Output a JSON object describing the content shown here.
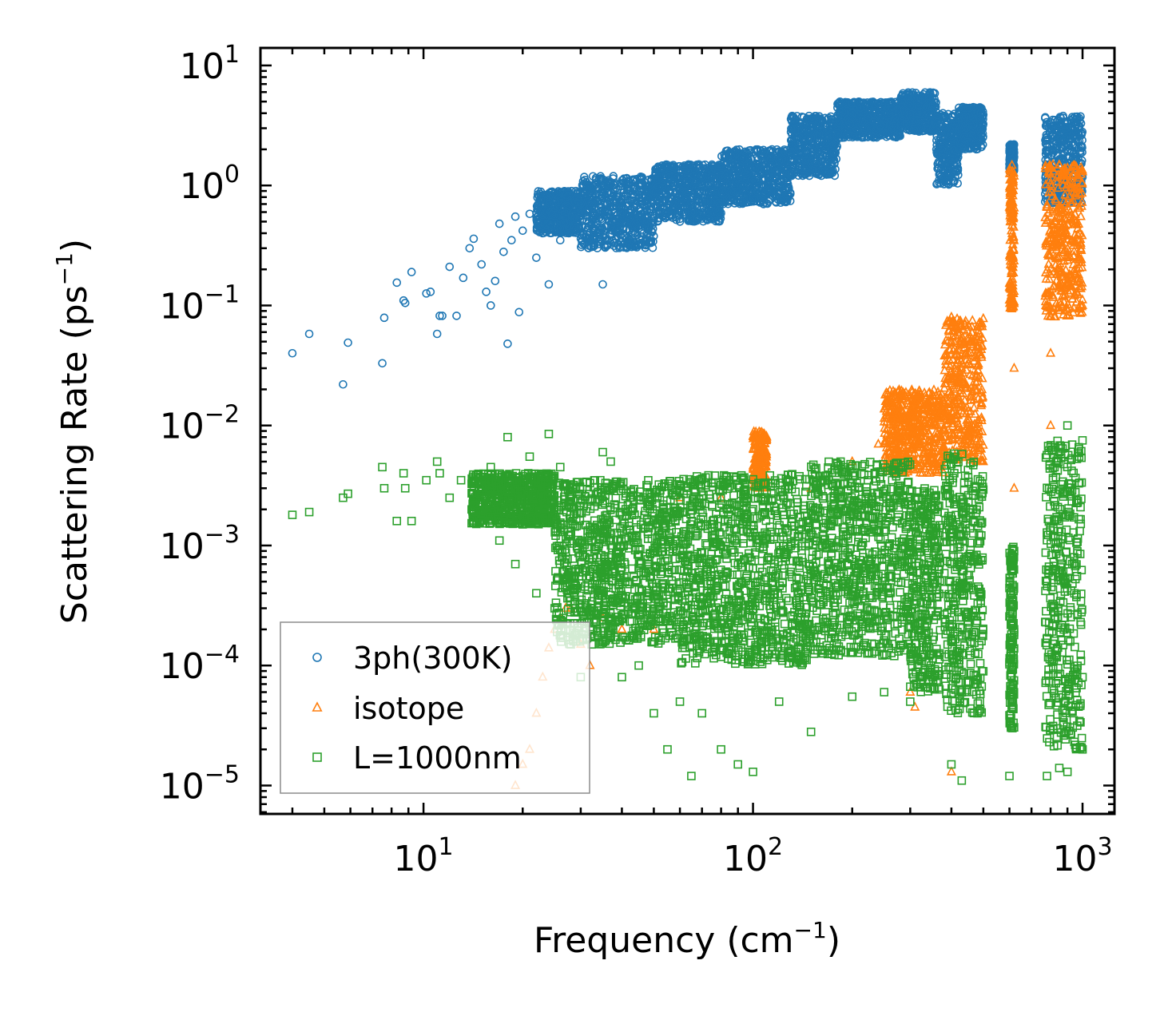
{
  "chart_data": {
    "type": "scatter",
    "title": "",
    "xlabel": "Frequency",
    "xlabel_unit": "(cm",
    "xlabel_unit_exp": "−1",
    "xlabel_unit_close": ")",
    "ylabel": "Scattering Rate",
    "ylabel_unit": "(ps",
    "ylabel_unit_exp": "−1",
    "ylabel_unit_close": ")",
    "xscale": "log",
    "yscale": "log",
    "xlim": [
      3.2,
      1250
    ],
    "ylim": [
      5.8e-06,
      14
    ],
    "x_ticks": [
      {
        "value": 10,
        "base": "10",
        "exp": "1"
      },
      {
        "value": 100,
        "base": "10",
        "exp": "2"
      },
      {
        "value": 1000,
        "base": "10",
        "exp": "3"
      }
    ],
    "y_ticks": [
      {
        "value": 10,
        "base": "10",
        "exp": "1"
      },
      {
        "value": 1,
        "base": "10",
        "exp": "0"
      },
      {
        "value": 0.1,
        "base": "10",
        "exp": "−1"
      },
      {
        "value": 0.01,
        "base": "10",
        "exp": "−2"
      },
      {
        "value": 0.001,
        "base": "10",
        "exp": "−3"
      },
      {
        "value": 0.0001,
        "base": "10",
        "exp": "−4"
      },
      {
        "value": 1e-05,
        "base": "10",
        "exp": "−5"
      }
    ],
    "legend_position": "bottom-left",
    "series": [
      {
        "name": "3ph(300K)",
        "marker": "circle",
        "color": "#1f77b4",
        "points": [
          [
            4.0,
            0.04
          ],
          [
            4.5,
            0.058
          ],
          [
            5.7,
            0.022
          ],
          [
            5.9,
            0.049
          ],
          [
            7.5,
            0.033
          ],
          [
            7.6,
            0.079
          ],
          [
            8.3,
            0.155
          ],
          [
            8.7,
            0.11
          ],
          [
            8.8,
            0.105
          ],
          [
            9.2,
            0.19
          ],
          [
            10.2,
            0.126
          ],
          [
            10.5,
            0.13
          ],
          [
            11.0,
            0.058
          ],
          [
            11.2,
            0.082
          ],
          [
            11.4,
            0.082
          ],
          [
            12.0,
            0.21
          ],
          [
            12.6,
            0.082
          ],
          [
            13.2,
            0.17
          ],
          [
            13.8,
            0.3
          ],
          [
            14.2,
            0.36
          ],
          [
            15.0,
            0.22
          ],
          [
            15.5,
            0.13
          ],
          [
            16.0,
            0.1
          ],
          [
            16.5,
            0.16
          ],
          [
            17.0,
            0.48
          ],
          [
            17.5,
            0.28
          ],
          [
            18.0,
            0.048
          ],
          [
            18.5,
            0.35
          ],
          [
            19.0,
            0.55
          ],
          [
            19.5,
            0.088
          ],
          [
            20.0,
            0.42
          ],
          [
            21.0,
            0.58
          ],
          [
            22.0,
            0.25
          ],
          [
            23.0,
            0.4
          ],
          [
            24.0,
            0.15
          ],
          [
            25.0,
            0.65
          ],
          [
            26.0,
            0.35
          ],
          [
            28.0,
            0.5
          ],
          [
            30.0,
            0.7
          ],
          [
            35.0,
            0.15
          ],
          [
            40.0,
            0.6
          ],
          [
            50.0,
            0.9
          ],
          [
            60.0,
            0.5
          ],
          [
            70.0,
            1.2
          ],
          [
            80.0,
            1.5
          ],
          [
            100.0,
            1.4
          ],
          [
            150.0,
            2.5
          ],
          [
            200.0,
            4.0
          ],
          [
            300.0,
            5.0
          ]
        ],
        "bands": [
          {
            "x": [
              22,
              30
            ],
            "y": [
              0.4,
              0.9
            ]
          },
          {
            "x": [
              30,
              50
            ],
            "y": [
              0.3,
              1.2
            ]
          },
          {
            "x": [
              50,
              80
            ],
            "y": [
              0.5,
              1.5
            ]
          },
          {
            "x": [
              80,
              130
            ],
            "y": [
              0.7,
              2.0
            ]
          },
          {
            "x": [
              130,
              180
            ],
            "y": [
              1.2,
              3.8
            ]
          },
          {
            "x": [
              180,
              280
            ],
            "y": [
              2.5,
              5.0
            ]
          },
          {
            "x": [
              280,
              360
            ],
            "y": [
              2.8,
              6.0
            ]
          },
          {
            "x": [
              360,
              420
            ],
            "y": [
              1.0,
              4.0
            ]
          },
          {
            "x": [
              420,
              500
            ],
            "y": [
              2.0,
              4.5
            ]
          },
          {
            "x": [
              600,
              620
            ],
            "y": [
              1.3,
              2.2
            ]
          },
          {
            "x": [
              770,
              1000
            ],
            "y": [
              0.7,
              3.8
            ]
          }
        ]
      },
      {
        "name": "isotope",
        "marker": "triangle",
        "color": "#ff7f0e",
        "points": [
          [
            19.0,
            1e-05
          ],
          [
            20.0,
            1.5e-05
          ],
          [
            21.0,
            2e-05
          ],
          [
            22.0,
            4e-05
          ],
          [
            23.0,
            8e-05
          ],
          [
            24.0,
            0.00014
          ],
          [
            25.0,
            0.0002
          ],
          [
            26.0,
            0.00025
          ],
          [
            27.0,
            0.0003
          ],
          [
            28.0,
            0.0003
          ],
          [
            30.0,
            0.00015
          ],
          [
            32.0,
            0.0001
          ],
          [
            35.0,
            0.00025
          ],
          [
            40.0,
            0.0002
          ],
          [
            50.0,
            0.0002
          ],
          [
            60.0,
            0.0025
          ],
          [
            80.0,
            0.0025
          ],
          [
            110.0,
            0.008
          ],
          [
            150.0,
            0.003
          ],
          [
            200.0,
            0.005
          ],
          [
            240.0,
            0.007
          ],
          [
            300.0,
            0.005
          ],
          [
            330.0,
            0.006
          ],
          [
            380.0,
            0.015
          ],
          [
            400.0,
            0.08
          ],
          [
            430.0,
            0.03
          ],
          [
            470.0,
            0.05
          ],
          [
            500.0,
            0.005
          ],
          [
            620.0,
            1.2
          ],
          [
            620.0,
            0.03
          ],
          [
            620.0,
            0.003
          ],
          [
            800.0,
            0.01
          ],
          [
            800.0,
            0.04
          ],
          [
            900.0,
            1.4
          ],
          [
            1000.0,
            1.3
          ],
          [
            1000.0,
            0.1
          ],
          [
            300.0,
            6e-05
          ],
          [
            310.0,
            4.5e-05
          ],
          [
            400.0,
            1.3e-05
          ]
        ],
        "bands": [
          {
            "x": [
              100,
              110
            ],
            "y": [
              0.003,
              0.009
            ]
          },
          {
            "x": [
              250,
              380
            ],
            "y": [
              0.004,
              0.02
            ]
          },
          {
            "x": [
              380,
              500
            ],
            "y": [
              0.005,
              0.08
            ]
          },
          {
            "x": [
              600,
              620
            ],
            "y": [
              0.09,
              1.5
            ]
          },
          {
            "x": [
              770,
              1000
            ],
            "y": [
              0.08,
              1.5
            ]
          }
        ]
      },
      {
        "name": "L=1000nm",
        "marker": "square",
        "color": "#2ca02c",
        "points": [
          [
            4.0,
            0.0018
          ],
          [
            4.5,
            0.0019
          ],
          [
            5.7,
            0.0025
          ],
          [
            5.9,
            0.0027
          ],
          [
            7.5,
            0.0045
          ],
          [
            7.6,
            0.003
          ],
          [
            8.3,
            0.0016
          ],
          [
            8.7,
            0.004
          ],
          [
            8.8,
            0.003
          ],
          [
            9.2,
            0.0016
          ],
          [
            10.2,
            0.0035
          ],
          [
            11.0,
            0.005
          ],
          [
            11.2,
            0.004
          ],
          [
            12.0,
            0.0025
          ],
          [
            13.0,
            0.0035
          ],
          [
            14.0,
            0.002
          ],
          [
            15.0,
            0.003
          ],
          [
            16.0,
            0.0045
          ],
          [
            17.0,
            0.0011
          ],
          [
            18.0,
            0.008
          ],
          [
            19.0,
            0.0007
          ],
          [
            20.0,
            0.0015
          ],
          [
            21.0,
            0.0055
          ],
          [
            22.0,
            0.0004
          ],
          [
            23.0,
            0.0035
          ],
          [
            24.0,
            0.0085
          ],
          [
            25.0,
            0.0003
          ],
          [
            26.0,
            0.0045
          ],
          [
            27.0,
            0.0002
          ],
          [
            28.0,
            0.00015
          ],
          [
            30.0,
            8e-05
          ],
          [
            32.0,
            0.0002
          ],
          [
            35.0,
            0.006
          ],
          [
            37.0,
            0.005
          ],
          [
            40.0,
            8e-05
          ],
          [
            45.0,
            0.0001
          ],
          [
            50.0,
            4e-05
          ],
          [
            55.0,
            2e-05
          ],
          [
            60.0,
            5e-05
          ],
          [
            65.0,
            1.2e-05
          ],
          [
            70.0,
            4e-05
          ],
          [
            80.0,
            2e-05
          ],
          [
            90.0,
            1.5e-05
          ],
          [
            100.0,
            1.3e-05
          ],
          [
            120.0,
            5e-05
          ],
          [
            150.0,
            2.8e-05
          ],
          [
            200.0,
            5.5e-05
          ],
          [
            250.0,
            6e-05
          ],
          [
            300.0,
            5e-05
          ],
          [
            350.0,
            8e-05
          ],
          [
            400.0,
            1.5e-05
          ],
          [
            430.0,
            1.1e-05
          ],
          [
            480.0,
            4e-05
          ],
          [
            600.0,
            1.2e-05
          ],
          [
            620.0,
            0.0009
          ],
          [
            780.0,
            1.2e-05
          ],
          [
            800.0,
            3e-05
          ],
          [
            850.0,
            1.4e-05
          ],
          [
            900.0,
            1.3e-05
          ],
          [
            1000.0,
            2e-05
          ],
          [
            1000.0,
            8e-05
          ],
          [
            900.0,
            0.01
          ],
          [
            850.0,
            0.006
          ]
        ],
        "bands": [
          {
            "x": [
              14,
              25
            ],
            "y": [
              0.0015,
              0.004
            ]
          },
          {
            "x": [
              25,
              60
            ],
            "y": [
              0.00015,
              0.0035
            ]
          },
          {
            "x": [
              60,
              150
            ],
            "y": [
              0.0001,
              0.004
            ]
          },
          {
            "x": [
              150,
              300
            ],
            "y": [
              0.00012,
              0.005
            ]
          },
          {
            "x": [
              300,
              370
            ],
            "y": [
              6e-05,
              0.003
            ]
          },
          {
            "x": [
              380,
              500
            ],
            "y": [
              4e-05,
              0.006
            ]
          },
          {
            "x": [
              600,
              620
            ],
            "y": [
              3e-05,
              0.001
            ]
          },
          {
            "x": [
              770,
              1000
            ],
            "y": [
              2e-05,
              0.008
            ]
          }
        ]
      }
    ]
  }
}
